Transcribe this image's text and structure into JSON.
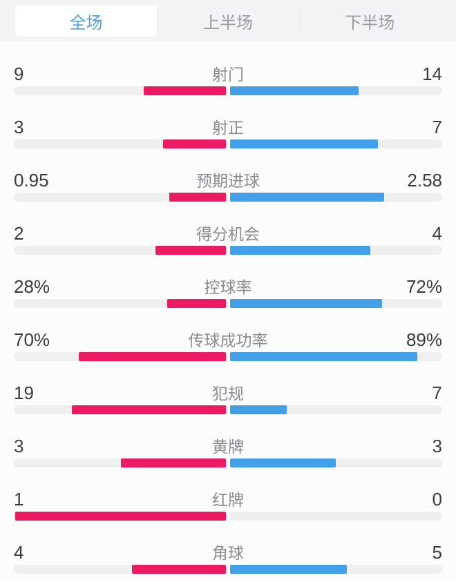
{
  "tabs": [
    {
      "name": "tab-full-match",
      "label": "全场",
      "active": true
    },
    {
      "name": "tab-first-half",
      "label": "上半场",
      "active": false
    },
    {
      "name": "tab-second-half",
      "label": "下半场",
      "active": false
    }
  ],
  "colors": {
    "home_bar": "#ec1a62",
    "away_bar": "#41a0e8",
    "bar_track": "#efeff0",
    "tab_active_text": "#4fa0db",
    "tab_inactive_text": "#9b9ca1",
    "tabbar_background": "#f2f3f5",
    "page_background": "#fcfcfd",
    "value_text": "#3a3b3f",
    "label_text": "#8a8b90"
  },
  "chart_data": {
    "type": "bar",
    "orientation": "horizontal-paired",
    "legend_position": "none",
    "grid": false,
    "series": [
      {
        "name": "home",
        "color": "#ec1a62",
        "side": "left"
      },
      {
        "name": "away",
        "color": "#41a0e8",
        "side": "right"
      }
    ],
    "rows": [
      {
        "label": "射门",
        "left": "9",
        "right": "14"
      },
      {
        "label": "射正",
        "left": "3",
        "right": "7"
      },
      {
        "label": "预期进球",
        "left": "0.95",
        "right": "2.58"
      },
      {
        "label": "得分机会",
        "left": "2",
        "right": "4"
      },
      {
        "label": "控球率",
        "left": "28%",
        "right": "72%"
      },
      {
        "label": "传球成功率",
        "left": "70%",
        "right": "89%"
      },
      {
        "label": "犯规",
        "left": "19",
        "right": "7"
      },
      {
        "label": "黄牌",
        "left": "3",
        "right": "3"
      },
      {
        "label": "红牌",
        "left": "1",
        "right": "0"
      },
      {
        "label": "角球",
        "left": "4",
        "right": "5"
      }
    ],
    "bar_rule": "percent values = pct/100 of half width; count values = value/(left+right) of half width"
  }
}
